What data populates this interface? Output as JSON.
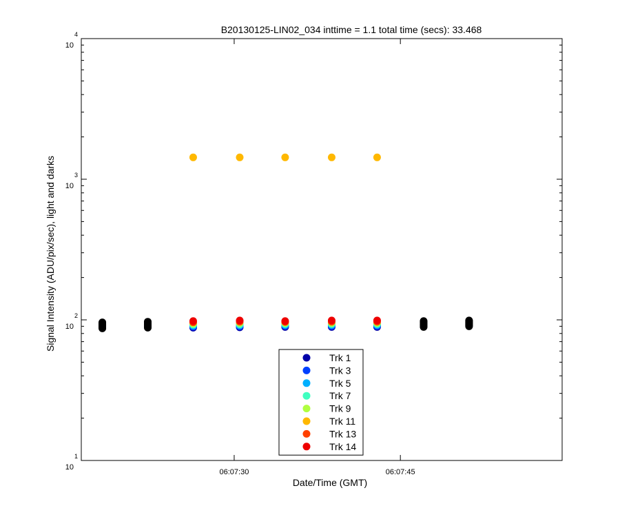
{
  "chart_data": {
    "type": "scatter",
    "title": "B20130125-LIN02_034 inttime = 1.1 total time (secs): 33.468",
    "xlabel": "Date/Time (GMT)",
    "ylabel": "Signal Intensity (ADU/pix/sec), light and darks",
    "x_scale": "time",
    "x_ticks": [
      "06:07:30",
      "06:07:45"
    ],
    "x_tick_values": [
      "06:07:30",
      "06:07:45"
    ],
    "xlim": [
      "06:07:16.2",
      "06:07:59.6"
    ],
    "y_scale": "log",
    "y_ticks": [
      10,
      100,
      1000,
      10000
    ],
    "y_tick_labels": [
      {
        "base": "10",
        "exp": "1"
      },
      {
        "base": "10",
        "exp": "2"
      },
      {
        "base": "10",
        "exp": "3"
      },
      {
        "base": "10",
        "exp": "4"
      }
    ],
    "ylim": [
      10,
      10000
    ],
    "grid": false,
    "legend_position": "bottom-center",
    "series": [
      {
        "name": "Trk 1",
        "color": "#0000a8",
        "x": [
          "06:07:26.3",
          "06:07:30.5",
          "06:07:34.6",
          "06:07:38.8",
          "06:07:42.9"
        ],
        "y": [
          88,
          88.5,
          89,
          89,
          89
        ]
      },
      {
        "name": "Trk 3",
        "color": "#0040ff",
        "x": [
          "06:07:26.3",
          "06:07:30.5",
          "06:07:34.6",
          "06:07:38.8",
          "06:07:42.9"
        ],
        "y": [
          89.5,
          90,
          90.5,
          90.5,
          90.5
        ]
      },
      {
        "name": "Trk 5",
        "color": "#00b0ff",
        "x": [
          "06:07:26.3",
          "06:07:30.5",
          "06:07:34.6",
          "06:07:38.8",
          "06:07:42.9"
        ],
        "y": [
          91,
          91.5,
          92,
          92,
          92
        ]
      },
      {
        "name": "Trk 7",
        "color": "#40ffc0",
        "x": [
          "06:07:26.3",
          "06:07:30.5",
          "06:07:34.6",
          "06:07:38.8",
          "06:07:42.9"
        ],
        "y": [
          92.5,
          93,
          93.5,
          93.5,
          93.5
        ]
      },
      {
        "name": "Trk 9",
        "color": "#b0ff40",
        "x": [
          "06:07:26.3",
          "06:07:30.5",
          "06:07:34.6",
          "06:07:38.8",
          "06:07:42.9"
        ],
        "y": [
          94,
          95,
          95,
          95,
          95
        ]
      },
      {
        "name": "Trk 11",
        "color": "#ffb800",
        "x": [
          "06:07:26.3",
          "06:07:30.5",
          "06:07:34.6",
          "06:07:38.8",
          "06:07:42.9"
        ],
        "y": [
          1430,
          1430,
          1430,
          1430,
          1430
        ]
      },
      {
        "name": "Trk 13",
        "color": "#ff4000",
        "x": [
          "06:07:26.3",
          "06:07:30.5",
          "06:07:34.6",
          "06:07:38.8",
          "06:07:42.9"
        ],
        "y": [
          96,
          97,
          96.5,
          97,
          97
        ]
      },
      {
        "name": "Trk 14",
        "color": "#ee0000",
        "x": [
          "06:07:26.3",
          "06:07:30.5",
          "06:07:34.6",
          "06:07:38.8",
          "06:07:42.9"
        ],
        "y": [
          98,
          99,
          98,
          99,
          99
        ]
      }
    ],
    "dark_frames": {
      "color": "#000000",
      "x": [
        "06:07:18.1",
        "06:07:22.2",
        "06:07:47.1",
        "06:07:51.2"
      ],
      "y": [
        [
          87,
          88,
          89,
          90,
          91,
          92,
          93,
          94,
          95,
          96
        ],
        [
          88,
          89,
          90,
          91,
          92,
          93,
          94,
          95,
          96,
          97
        ],
        [
          89,
          90,
          91,
          92,
          93,
          94,
          95,
          96,
          97,
          98
        ],
        [
          90,
          91,
          92,
          93,
          94,
          95,
          96,
          97,
          98,
          99
        ]
      ]
    }
  }
}
